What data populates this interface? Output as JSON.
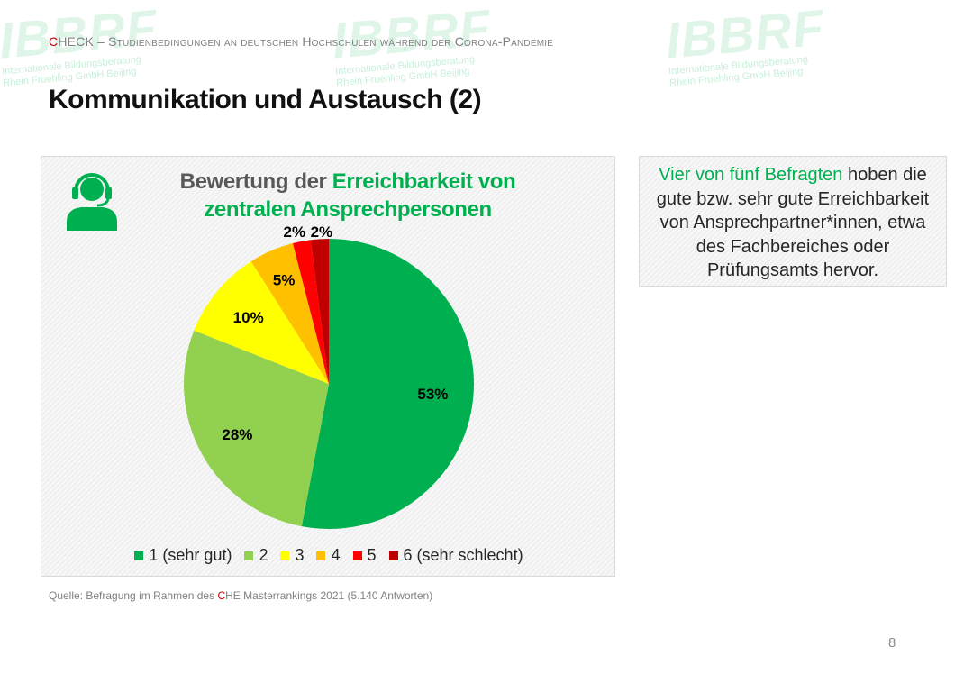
{
  "header": {
    "first_letter": "C",
    "rest": "HECK – Studienbedingungen an deutschen Hochschulen während der Corona-Pandemie"
  },
  "slide_title": "Kommunikation und Austausch (2)",
  "chart_data": {
    "type": "pie",
    "title_part_grey": "Bewertung der ",
    "title_part_green": "Erreichbarkeit von zentralen Ansprechpersonen",
    "categories": [
      "1 (sehr gut)",
      "2",
      "3",
      "4",
      "5",
      "6 (sehr schlecht)"
    ],
    "values": [
      53,
      28,
      10,
      5,
      2,
      2
    ],
    "labels": [
      "53%",
      "28%",
      "10%",
      "5%",
      "2%",
      "2%"
    ],
    "colors": [
      "#00b050",
      "#92d050",
      "#ffff00",
      "#ffc000",
      "#ff0000",
      "#c00000"
    ],
    "legend_position": "bottom"
  },
  "note": {
    "highlight": "Vier von fünf Befragten",
    "text": " hoben die gute bzw. sehr gute Erreichbarkeit von Ansprechpartner*innen, etwa des Fachbereiches oder Prüfungsamts hervor."
  },
  "source": {
    "prefix": "Quelle: Befragung im Rahmen des ",
    "red": "C",
    "suffix": "HE Masterrankings 2021 (5.140 Antworten)"
  },
  "page_number": "8",
  "watermark": {
    "logo": "IBBRF",
    "line1": "Internationale Bildungsberatung",
    "line2": "Rhein Fruehling GmbH Beijing"
  },
  "icons": {
    "support": "headset-person-icon"
  }
}
